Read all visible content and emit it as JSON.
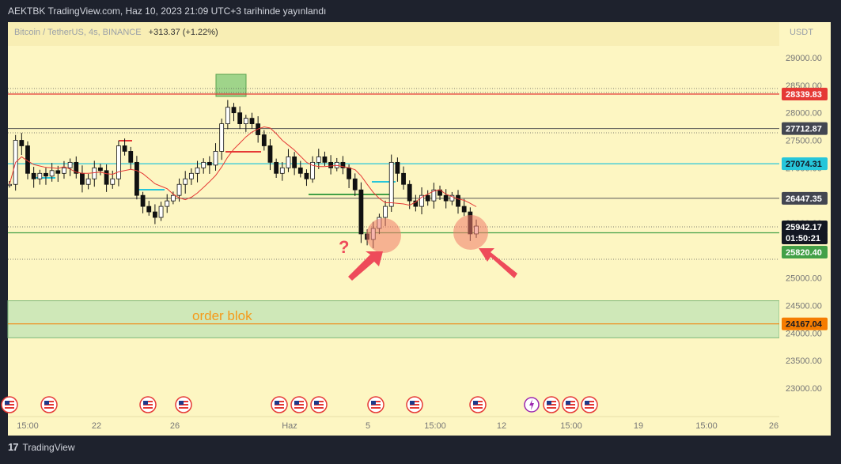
{
  "header": {
    "title": "AEKTBK TradingView.com, Haz 10, 2023 21:09 UTC+3 tarihinde yayınlandı"
  },
  "symbol": {
    "name": "Bitcoin / TetherUS, 4s, BINANCE",
    "change": "+313.37 (+1.22%)"
  },
  "currency_label": "USDT",
  "annotations": {
    "order_block": "order blok",
    "question": "?"
  },
  "price_labels": [
    {
      "text": "28339.83",
      "bg": "#e53935",
      "fg": "#ffffff"
    },
    {
      "text": "27712.87",
      "bg": "#434651",
      "fg": "#ffffff"
    },
    {
      "text": "27074.31",
      "bg": "#26c6da",
      "fg": "#131722"
    },
    {
      "text": "26447.35",
      "bg": "#434651",
      "fg": "#ffffff"
    },
    {
      "text": "25942.17",
      "bg": "#131722",
      "fg": "#ffffff"
    },
    {
      "text": "01:50:21",
      "bg": "#131722",
      "fg": "#ffffff"
    },
    {
      "text": "25820.40",
      "bg": "#43a047",
      "fg": "#ffffff"
    },
    {
      "text": "24167.04",
      "bg": "#f57c00",
      "fg": "#131722"
    }
  ],
  "event_icons": [
    "us-flag-icon",
    "us-flag-icon",
    "us-flag-icon",
    "us-flag-icon",
    "us-flag-icon",
    "us-flag-icon",
    "us-flag-icon",
    "us-flag-icon",
    "us-flag-icon",
    "us-flag-icon",
    "lightning-icon",
    "us-flag-icon",
    "us-flag-icon",
    "us-flag-icon",
    "us-flag-icon",
    "us-flag-icon"
  ],
  "footer": {
    "brand": "TradingView",
    "logo": "17"
  },
  "colors": {
    "background": "#fdf6c2",
    "red_level": "#e53935",
    "cyan_level": "#26c6da",
    "green_level": "#43a047",
    "orange_level": "#f57c00",
    "ma_line": "#e53935"
  },
  "chart_data": {
    "type": "candlestick",
    "y_axis": {
      "ticks": [
        29000,
        28500,
        28000,
        27500,
        27000,
        26500,
        26000,
        25500,
        25000,
        24500,
        24000,
        23500,
        23000
      ],
      "ylim": [
        22600,
        29500
      ]
    },
    "x_axis": {
      "ticks": [
        "15:00",
        "22",
        "26",
        "Haz",
        "5",
        "15:00",
        "12",
        "15:00",
        "19",
        "15:00",
        "26"
      ]
    },
    "levels": [
      28339.83,
      27712.87,
      27074.31,
      26447.35,
      25820.4,
      24167.04
    ],
    "last_price": 25942.17,
    "countdown": "01:50:21",
    "order_block_zone": [
      24000,
      24500
    ],
    "closes": [
      26700,
      27500,
      27400,
      26900,
      26800,
      26900,
      26850,
      26950,
      26900,
      27000,
      27100,
      26900,
      26700,
      26800,
      27000,
      26950,
      26700,
      26800,
      27400,
      27300,
      27100,
      26500,
      26300,
      26200,
      26100,
      26300,
      26400,
      26500,
      26700,
      26800,
      26900,
      27000,
      27100,
      27050,
      27300,
      27800,
      28100,
      28000,
      27800,
      27900,
      27800,
      27600,
      27400,
      27100,
      26900,
      27000,
      27200,
      27000,
      26900,
      26800,
      27100,
      27200,
      27100,
      27000,
      27100,
      27000,
      26800,
      26600,
      25800,
      25700,
      25900,
      26100,
      26300,
      27100,
      26900,
      26700,
      26400,
      26300,
      26500,
      26400,
      26600,
      26500,
      26400,
      26500,
      26300,
      26200,
      25800,
      25942
    ]
  }
}
